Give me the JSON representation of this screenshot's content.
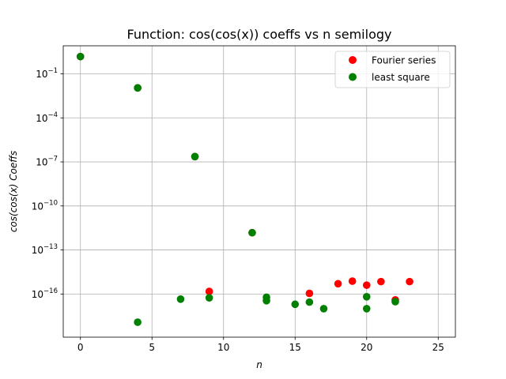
{
  "chart_data": {
    "type": "scatter",
    "title": "Function: cos(cos(x)) coeffs vs n semilogy",
    "xlabel": "n",
    "ylabel": "cos(cos(x) Coeffs",
    "x_scale": "linear",
    "y_scale": "log",
    "xlim": [
      -1.2,
      26.2
    ],
    "ylim_log10": [
      -18.94,
      0.91
    ],
    "grid": true,
    "legend_position": "top-right",
    "x_ticks": [
      {
        "value": 0,
        "label": "0"
      },
      {
        "value": 5,
        "label": "5"
      },
      {
        "value": 10,
        "label": "10"
      },
      {
        "value": 15,
        "label": "15"
      },
      {
        "value": 20,
        "label": "20"
      },
      {
        "value": 25,
        "label": "25"
      }
    ],
    "y_ticks": [
      {
        "exp": -1,
        "base": "10",
        "sup": "−1"
      },
      {
        "exp": -4,
        "base": "10",
        "sup": "−4"
      },
      {
        "exp": -7,
        "base": "10",
        "sup": "−7"
      },
      {
        "exp": -10,
        "base": "10",
        "sup": "−10"
      },
      {
        "exp": -13,
        "base": "10",
        "sup": "−13"
      },
      {
        "exp": -16,
        "base": "10",
        "sup": "−16"
      }
    ],
    "series": [
      {
        "name": "Fourier series",
        "color": "#ff0000",
        "points": [
          {
            "x": 0,
            "y": 1.5
          },
          {
            "x": 4,
            "y": 0.011
          },
          {
            "x": 8,
            "y": 2.3e-07
          },
          {
            "x": 9,
            "y": 1.5e-16
          },
          {
            "x": 12,
            "y": 1.5e-12
          },
          {
            "x": 16,
            "y": 1.1e-16
          },
          {
            "x": 18,
            "y": 5e-16
          },
          {
            "x": 19,
            "y": 7.5e-16
          },
          {
            "x": 20,
            "y": 4e-16
          },
          {
            "x": 21,
            "y": 7e-16
          },
          {
            "x": 22,
            "y": 4e-17
          },
          {
            "x": 23,
            "y": 7e-16
          }
        ]
      },
      {
        "name": "least square",
        "color": "#008000",
        "points": [
          {
            "x": 0,
            "y": 1.5
          },
          {
            "x": 4,
            "y": 0.011
          },
          {
            "x": 4,
            "y": 1.2e-18
          },
          {
            "x": 7,
            "y": 4.5e-17
          },
          {
            "x": 8,
            "y": 2.3e-07
          },
          {
            "x": 9,
            "y": 5.5e-17
          },
          {
            "x": 12,
            "y": 1.5e-12
          },
          {
            "x": 13,
            "y": 6e-17
          },
          {
            "x": 13,
            "y": 3.5e-17
          },
          {
            "x": 15,
            "y": 2e-17
          },
          {
            "x": 16,
            "y": 2.8e-17
          },
          {
            "x": 17,
            "y": 1e-17
          },
          {
            "x": 20,
            "y": 6.5e-17
          },
          {
            "x": 20,
            "y": 1e-17
          },
          {
            "x": 22,
            "y": 3e-17
          }
        ]
      }
    ]
  }
}
